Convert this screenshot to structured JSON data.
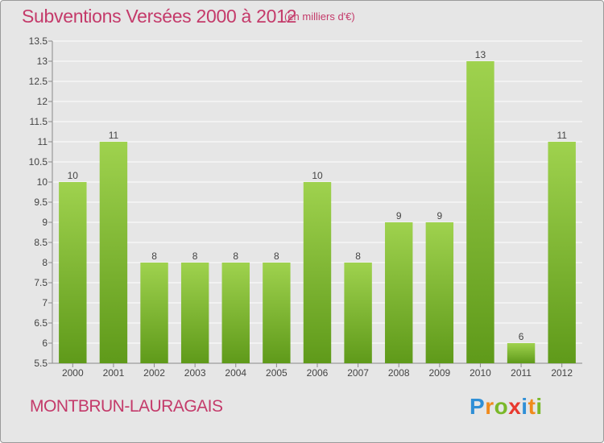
{
  "title": "Subventions Versées 2000 à 2012",
  "unit": "(en milliers d'€)",
  "commune": "MONTBRUN-LAURAGAIS",
  "brand": {
    "letters": [
      "P",
      "r",
      "o",
      "x",
      "i",
      "t",
      "i"
    ],
    "colors": [
      "#2f8fd6",
      "#f08a1c",
      "#7ab829",
      "#e8392f",
      "#2f8fd6",
      "#f08a1c",
      "#7ab829"
    ]
  },
  "colors": {
    "bar_top": "#9fd24e",
    "bar_bottom": "#5f9a1a",
    "grid": "#ffffff",
    "axis": "#8a8a8a",
    "text": "#444444"
  },
  "chart_data": {
    "type": "bar",
    "title": "Subventions Versées 2000 à 2012",
    "ylabel": "(en milliers d'€)",
    "xlabel": "",
    "categories": [
      "2000",
      "2001",
      "2002",
      "2003",
      "2004",
      "2005",
      "2006",
      "2007",
      "2008",
      "2009",
      "2010",
      "2011",
      "2012"
    ],
    "values": [
      10,
      11,
      8,
      8,
      8,
      8,
      10,
      8,
      9,
      9,
      13,
      6,
      11
    ],
    "data_labels": [
      "10",
      "11",
      "8",
      "8",
      "8",
      "8",
      "10",
      "8",
      "9",
      "9",
      "13",
      "6",
      "11"
    ],
    "ylim": [
      5.5,
      13.5
    ],
    "yticks": [
      5.5,
      6,
      6.5,
      7,
      7.5,
      8,
      8.5,
      9,
      9.5,
      10,
      10.5,
      11,
      11.5,
      12,
      12.5,
      13,
      13.5
    ],
    "ytick_labels": [
      "5.5",
      "6",
      "6.5",
      "7",
      "7.5",
      "8",
      "8.5",
      "9",
      "9.5",
      "10",
      "10.5",
      "11",
      "11.5",
      "12",
      "12.5",
      "13",
      "13.5"
    ],
    "grid": true,
    "legend": "none"
  }
}
